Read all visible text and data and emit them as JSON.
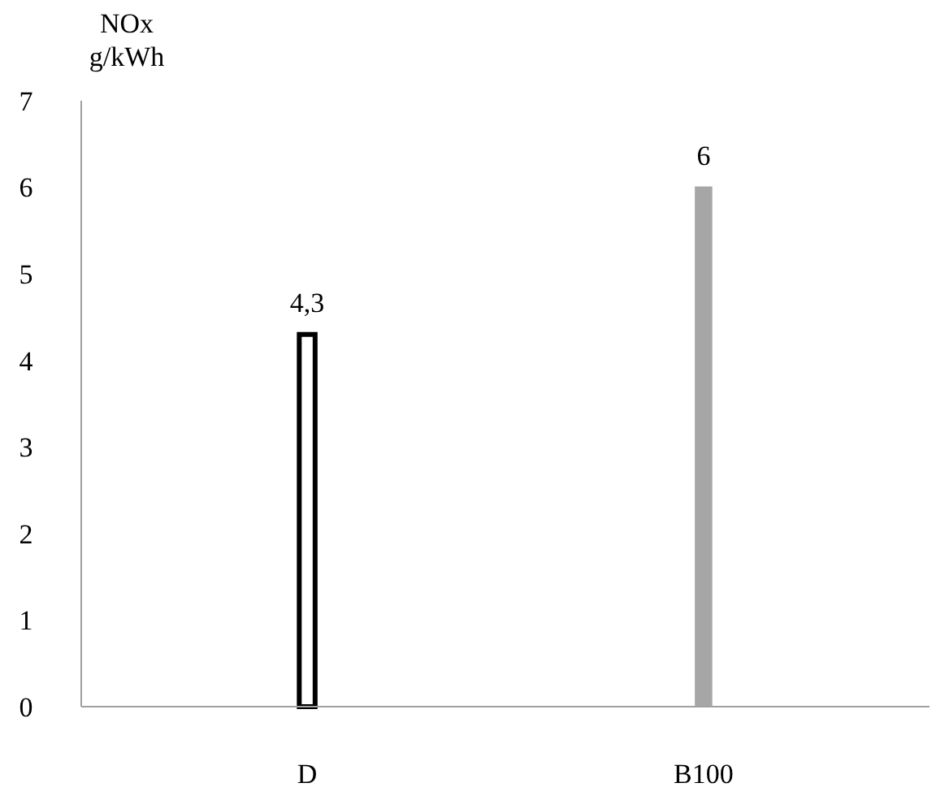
{
  "chart_data": {
    "type": "bar",
    "ylabel": "NOx g/kWh",
    "categories": [
      "D",
      "B100"
    ],
    "values": [
      4.3,
      6
    ],
    "colors": [
      "#ffffff",
      "#a6a6a6"
    ],
    "value_labels": [
      "4,3",
      "6"
    ],
    "ylim": [
      0,
      7
    ],
    "yticks": [
      0,
      1,
      2,
      3,
      4,
      5,
      6,
      7
    ],
    "grid": false
  }
}
